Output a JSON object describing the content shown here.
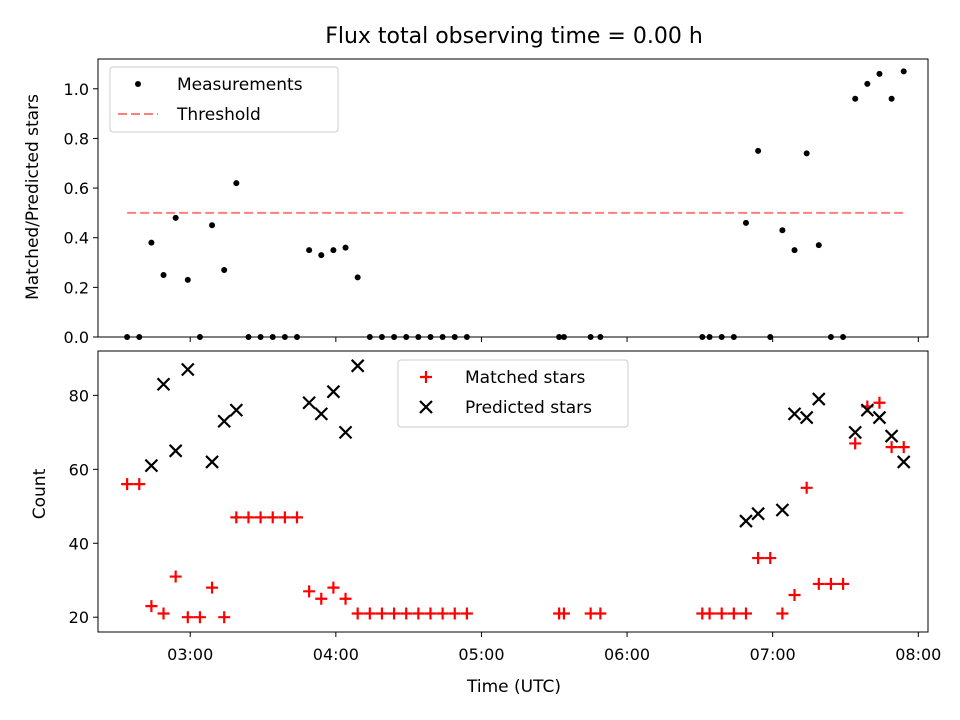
{
  "chart_data": [
    {
      "type": "scatter",
      "title": "Flux total observing time = 0.00 h",
      "ylabel": "Matched/Predicted stars",
      "xlabel": "",
      "ylim": [
        0,
        1.12
      ],
      "yticks": [
        "0.0",
        "0.2",
        "0.4",
        "0.6",
        "0.8",
        "1.0"
      ],
      "legend_position": "upper-left",
      "series": [
        {
          "name": "Measurements",
          "marker": "dot",
          "color": "#000000",
          "x": [
            "02:34",
            "02:39",
            "02:44",
            "02:49",
            "02:54",
            "02:59",
            "03:04",
            "03:09",
            "03:14",
            "03:19",
            "03:24",
            "03:29",
            "03:34",
            "03:39",
            "03:44",
            "03:49",
            "03:54",
            "03:59",
            "04:04",
            "04:09",
            "04:14",
            "04:19",
            "04:24",
            "04:29",
            "04:34",
            "04:39",
            "04:44",
            "04:49",
            "04:54",
            "05:32",
            "05:34",
            "05:45",
            "05:49",
            "06:31",
            "06:34",
            "06:39",
            "06:44",
            "06:49",
            "06:54",
            "06:59",
            "07:04",
            "07:09",
            "07:14",
            "07:19",
            "07:24",
            "07:29",
            "07:34",
            "07:39",
            "07:44",
            "07:49",
            "07:54"
          ],
          "y": [
            0.0,
            0.0,
            0.38,
            0.25,
            0.48,
            0.23,
            0.0,
            0.45,
            0.27,
            0.62,
            0.0,
            0.0,
            0.0,
            0.0,
            0.0,
            0.35,
            0.33,
            0.35,
            0.36,
            0.24,
            0.0,
            0.0,
            0.0,
            0.0,
            0.0,
            0.0,
            0.0,
            0.0,
            0.0,
            0.0,
            0.0,
            0.0,
            0.0,
            0.0,
            0.0,
            0.0,
            0.0,
            0.46,
            0.75,
            0.0,
            0.43,
            0.35,
            0.74,
            0.37,
            0.0,
            0.0,
            0.96,
            1.02,
            1.06,
            0.96,
            1.07
          ]
        },
        {
          "name": "Threshold",
          "line": "dashed",
          "color": "#ff7f7f",
          "x": [
            "02:34",
            "07:54"
          ],
          "y": [
            0.5,
            0.5
          ]
        }
      ]
    },
    {
      "type": "scatter",
      "title": "",
      "ylabel": "Count",
      "xlabel": "Time (UTC)",
      "ylim": [
        16,
        92
      ],
      "yticks": [
        "20",
        "40",
        "60",
        "80"
      ],
      "xticks": [
        "03:00",
        "04:00",
        "05:00",
        "06:00",
        "07:00",
        "08:00"
      ],
      "legend_position": "upper-center",
      "series": [
        {
          "name": "Matched stars",
          "marker": "plus",
          "color": "#ff0000",
          "x": [
            "02:34",
            "02:39",
            "02:44",
            "02:49",
            "02:54",
            "02:59",
            "03:04",
            "03:09",
            "03:14",
            "03:19",
            "03:24",
            "03:29",
            "03:34",
            "03:39",
            "03:44",
            "03:49",
            "03:54",
            "03:59",
            "04:04",
            "04:09",
            "04:14",
            "04:19",
            "04:24",
            "04:29",
            "04:34",
            "04:39",
            "04:44",
            "04:49",
            "04:54",
            "05:32",
            "05:34",
            "05:45",
            "05:49",
            "06:31",
            "06:34",
            "06:39",
            "06:44",
            "06:49",
            "06:54",
            "06:59",
            "07:04",
            "07:09",
            "07:14",
            "07:19",
            "07:24",
            "07:29",
            "07:34",
            "07:39",
            "07:44",
            "07:49",
            "07:54"
          ],
          "y": [
            56,
            56,
            23,
            21,
            31,
            20,
            20,
            28,
            20,
            47,
            47,
            47,
            47,
            47,
            47,
            27,
            25,
            28,
            25,
            21,
            21,
            21,
            21,
            21,
            21,
            21,
            21,
            21,
            21,
            21,
            21,
            21,
            21,
            21,
            21,
            21,
            21,
            21,
            36,
            36,
            21,
            26,
            55,
            29,
            29,
            29,
            67,
            77,
            78,
            66,
            66
          ]
        },
        {
          "name": "Predicted stars",
          "marker": "x",
          "color": "#000000",
          "x": [
            "02:44",
            "02:49",
            "02:54",
            "02:59",
            "03:09",
            "03:14",
            "03:19",
            "03:49",
            "03:54",
            "03:59",
            "04:04",
            "04:09",
            "06:49",
            "06:54",
            "07:04",
            "07:09",
            "07:14",
            "07:19",
            "07:34",
            "07:39",
            "07:44",
            "07:49",
            "07:54"
          ],
          "y": [
            61,
            83,
            65,
            87,
            62,
            73,
            76,
            78,
            75,
            81,
            70,
            88,
            46,
            48,
            49,
            75,
            74,
            79,
            70,
            76,
            74,
            69,
            62
          ]
        }
      ]
    }
  ]
}
